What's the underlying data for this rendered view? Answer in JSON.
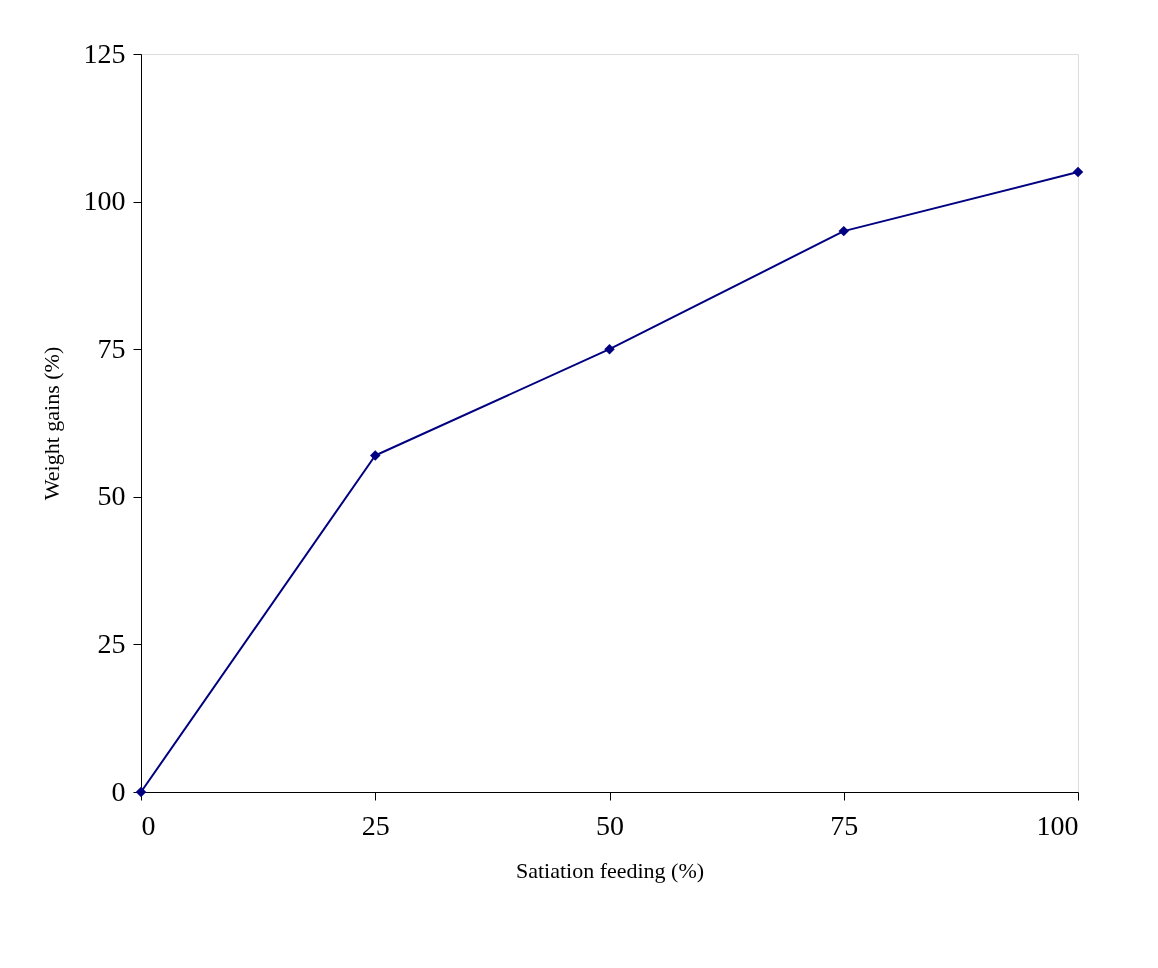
{
  "chart_data": {
    "type": "line",
    "xlabel": "Satiation feeding (%)",
    "ylabel": "Weight gains (%)",
    "x": [
      0,
      25,
      50,
      75,
      100
    ],
    "series": [
      {
        "color": "#000080",
        "values": [
          0,
          57,
          75,
          95,
          105
        ]
      }
    ],
    "xlim": [
      0,
      100
    ],
    "xticks": [
      0,
      25,
      50,
      75,
      100
    ],
    "ylim": [
      0,
      125
    ],
    "yticks": [
      0,
      25,
      50,
      75,
      100,
      125
    ],
    "grid": false,
    "legend": false,
    "marker": "diamond",
    "line_style": "solid"
  }
}
